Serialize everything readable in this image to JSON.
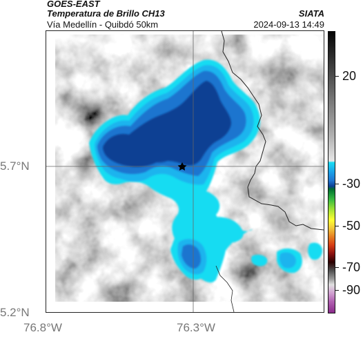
{
  "header": {
    "satellite": "GOES-EAST",
    "product": "Temperatura de Brillo CH13",
    "route": "Vía Medellín - Quibdó 50km",
    "org": "SIATA",
    "timestamp": "2024-09-13 14:49"
  },
  "axes": {
    "lat_labels": [
      "5.7°N",
      "5.2°N"
    ],
    "lon_labels": [
      "76.8°W",
      "76.3°W"
    ]
  },
  "colorbar": {
    "tick_labels": [
      "20",
      "-30",
      "-50",
      "-70",
      "-90"
    ],
    "colors": {
      "deep_blue": "#0c3f93",
      "mid_blue": "#1f74cf",
      "light_blue": "#1eb4ee",
      "cyan": "#19dcf2",
      "grey_dark": "#5a5a5a",
      "grey_light": "#e0e0e0"
    }
  },
  "map": {
    "marker": "star-icon",
    "features": [
      "cloud-top-temperature-field",
      "department-boundary",
      "crosshair"
    ]
  }
}
